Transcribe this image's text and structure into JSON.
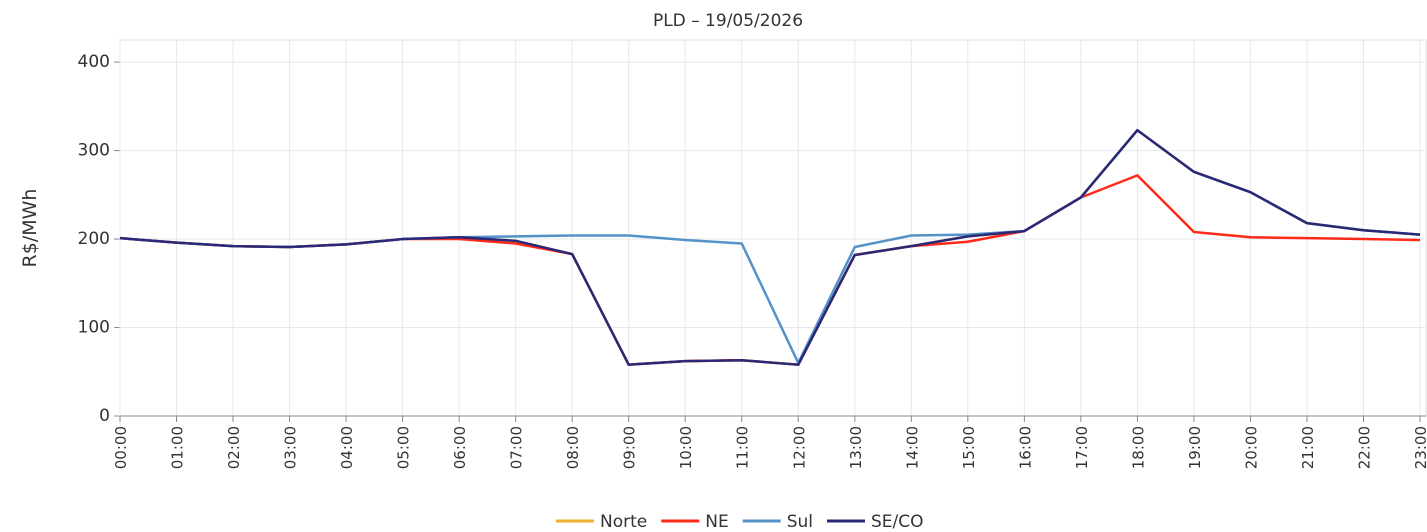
{
  "chart_data": {
    "type": "line",
    "title": "PLD – 19/05/2026",
    "y_label": "R$/MWh",
    "categories": [
      "00:00",
      "01:00",
      "02:00",
      "03:00",
      "04:00",
      "05:00",
      "06:00",
      "07:00",
      "08:00",
      "09:00",
      "10:00",
      "11:00",
      "12:00",
      "13:00",
      "14:00",
      "15:00",
      "16:00",
      "17:00",
      "18:00",
      "19:00",
      "20:00",
      "21:00",
      "22:00",
      "23:00"
    ],
    "series": [
      {
        "name": "Norte",
        "color": "#f0b030",
        "values": [
          201,
          196,
          192,
          191,
          194,
          200,
          202,
          198,
          183,
          58,
          62,
          63,
          58,
          182,
          192,
          203,
          209,
          247,
          323,
          276,
          253,
          218,
          210,
          205
        ]
      },
      {
        "name": "NE",
        "color": "#ff2a1a",
        "values": [
          201,
          196,
          192,
          191,
          194,
          200,
          200,
          195,
          183,
          58,
          62,
          63,
          58,
          182,
          192,
          197,
          209,
          247,
          272,
          208,
          202,
          201,
          200,
          199
        ]
      },
      {
        "name": "Sul",
        "color": "#5592c8",
        "values": [
          201,
          196,
          192,
          191,
          194,
          200,
          202,
          203,
          204,
          204,
          199,
          195,
          60,
          191,
          204,
          205,
          209,
          247,
          323,
          276,
          253,
          218,
          210,
          205
        ]
      },
      {
        "name": "SE/CO",
        "color": "#2a2878",
        "values": [
          201,
          196,
          192,
          191,
          194,
          200,
          202,
          198,
          183,
          58,
          62,
          63,
          58,
          182,
          192,
          203,
          209,
          247,
          323,
          276,
          253,
          218,
          210,
          205
        ]
      }
    ],
    "ylim": [
      0,
      425
    ],
    "yticks": [
      0,
      100,
      200,
      300,
      400
    ],
    "grid": true,
    "legend": "bottom"
  }
}
